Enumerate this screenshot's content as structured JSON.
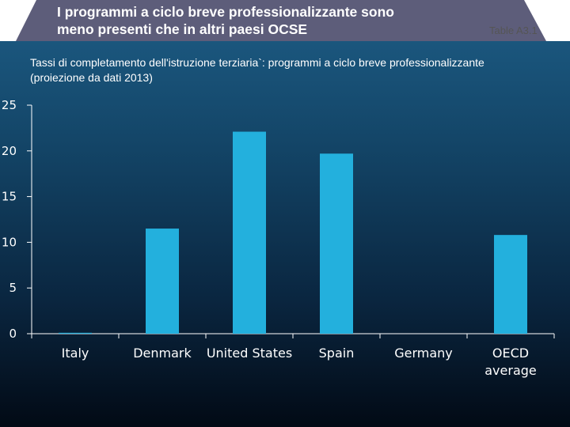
{
  "header": {
    "title_line1": "I programmi a ciclo breve professionalizzante sono",
    "title_line2": "meno presenti che in altri paesi OCSE",
    "table_ref": "Table A3.1"
  },
  "colors": {
    "bar": "#23b0dd",
    "band": "#5d5d7a",
    "axis": "#ffffff"
  },
  "chart_data": {
    "type": "bar",
    "title": "Tassi di completamento dell'istruzione terziaria`: programmi a ciclo breve professionalizzante (proiezione da dati 2013)",
    "title_line1": "Tassi di completamento dell'istruzione terziaria`: programmi a ciclo breve professionalizzante",
    "title_line2": "(proiezione da dati 2013)",
    "categories": [
      "Italy",
      "Denmark",
      "United States",
      "Spain",
      "Germany",
      "OECD average"
    ],
    "category_lines": [
      [
        "Italy"
      ],
      [
        "Denmark"
      ],
      [
        "United States"
      ],
      [
        "Spain"
      ],
      [
        "Germany"
      ],
      [
        "OECD",
        "average"
      ]
    ],
    "values": [
      0.1,
      11.5,
      22.1,
      19.7,
      0,
      10.8
    ],
    "ylim": [
      0,
      25
    ],
    "yticks": [
      0,
      5,
      10,
      15,
      20,
      25
    ],
    "xlabel": "",
    "ylabel": "",
    "grid": false,
    "legend": "none"
  }
}
